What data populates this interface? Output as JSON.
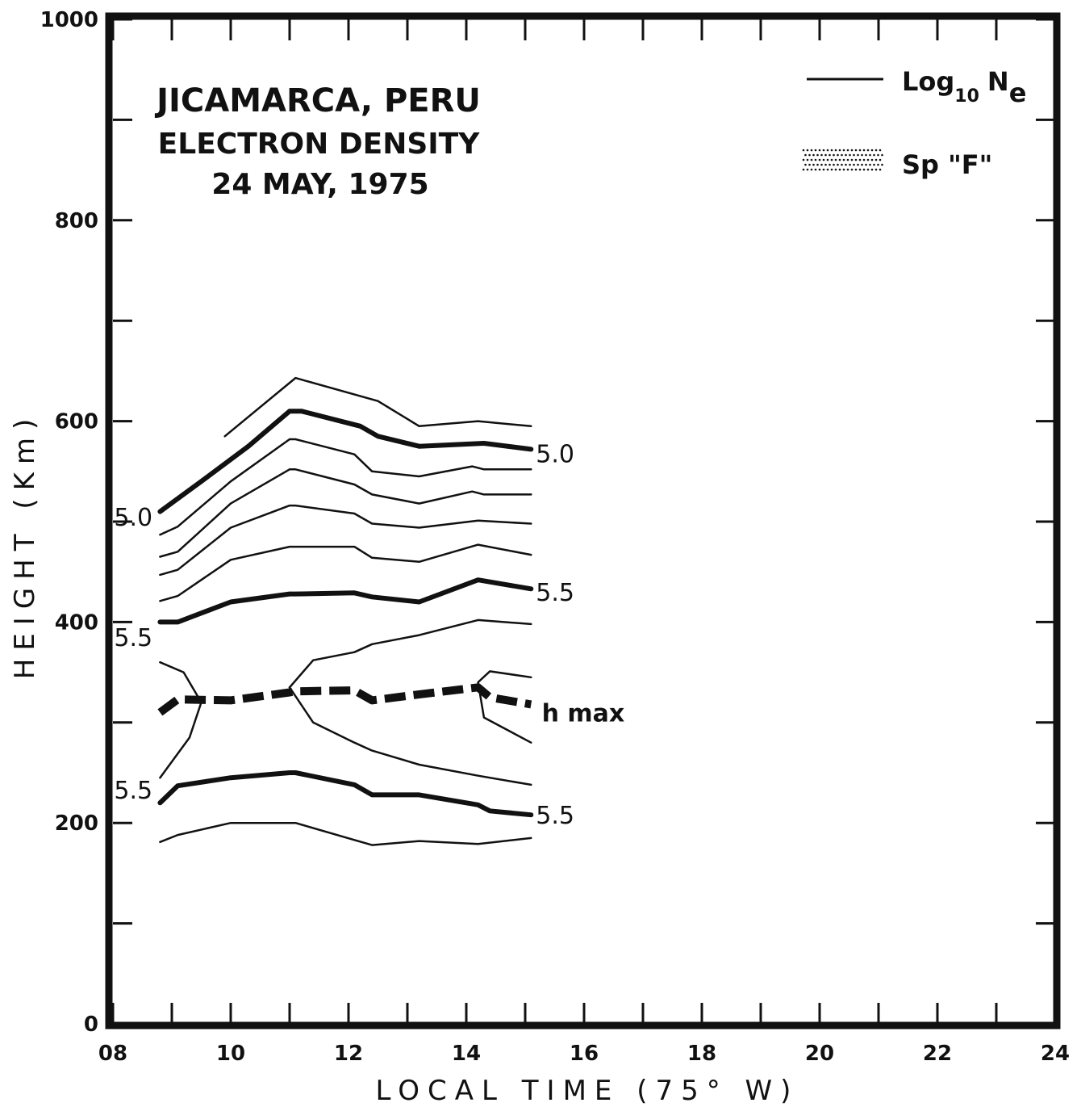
{
  "chart_data": {
    "type": "line",
    "title": "JICAMARCA, PERU",
    "subtitle": "ELECTRON DENSITY",
    "date": "24 MAY, 1975",
    "xlabel": "LOCAL TIME (75° W)",
    "ylabel": "HEIGHT (Km)",
    "xlim": [
      8,
      24
    ],
    "ylim": [
      0,
      1000
    ],
    "x_tick_labels": [
      "08",
      "10",
      "12",
      "14",
      "16",
      "18",
      "20",
      "22",
      "24"
    ],
    "y_tick_labels": [
      "0",
      "200",
      "400",
      "600",
      "800",
      "1000"
    ],
    "legend": {
      "position": "top-right",
      "items": [
        {
          "label": "Log",
          "subscript": "10",
          "label2": "N",
          "subscript2": "e",
          "style": "line"
        },
        {
          "label": "Sp \"F\"",
          "style": "dotted-fill"
        }
      ]
    },
    "series": [
      {
        "style": "thin",
        "points": [
          [
            9.9,
            585
          ],
          [
            11.1,
            643
          ],
          [
            12.5,
            620
          ],
          [
            13.2,
            595
          ],
          [
            14.2,
            600
          ],
          [
            15.1,
            595
          ]
        ]
      },
      {
        "style": "thick",
        "label": "5.0",
        "points": [
          [
            8.8,
            510
          ],
          [
            9.5,
            540
          ],
          [
            10.3,
            575
          ],
          [
            11.0,
            610
          ],
          [
            11.2,
            610
          ],
          [
            12.2,
            595
          ],
          [
            12.5,
            585
          ],
          [
            13.2,
            575
          ],
          [
            14.3,
            578
          ],
          [
            15.1,
            572
          ]
        ]
      },
      {
        "style": "thin",
        "points": [
          [
            8.8,
            487
          ],
          [
            9.1,
            495
          ],
          [
            10.0,
            540
          ],
          [
            11.0,
            582
          ],
          [
            11.1,
            582
          ],
          [
            12.1,
            567
          ],
          [
            12.4,
            550
          ],
          [
            13.2,
            545
          ],
          [
            14.1,
            555
          ],
          [
            14.3,
            552
          ],
          [
            15.1,
            552
          ]
        ]
      },
      {
        "style": "thin",
        "points": [
          [
            8.8,
            465
          ],
          [
            9.1,
            470
          ],
          [
            10.0,
            518
          ],
          [
            11.0,
            552
          ],
          [
            11.1,
            552
          ],
          [
            12.1,
            537
          ],
          [
            12.4,
            527
          ],
          [
            13.2,
            518
          ],
          [
            14.1,
            530
          ],
          [
            14.3,
            527
          ],
          [
            15.1,
            527
          ]
        ]
      },
      {
        "style": "thin",
        "points": [
          [
            8.8,
            447
          ],
          [
            9.1,
            452
          ],
          [
            10.0,
            494
          ],
          [
            11.0,
            516
          ],
          [
            11.1,
            516
          ],
          [
            12.1,
            508
          ],
          [
            12.4,
            498
          ],
          [
            13.2,
            494
          ],
          [
            14.2,
            501
          ],
          [
            15.1,
            498
          ]
        ]
      },
      {
        "style": "thin",
        "points": [
          [
            8.8,
            421
          ],
          [
            9.1,
            426
          ],
          [
            10.0,
            462
          ],
          [
            11.0,
            475
          ],
          [
            11.1,
            475
          ],
          [
            12.1,
            475
          ],
          [
            12.4,
            464
          ],
          [
            13.2,
            460
          ],
          [
            14.2,
            477
          ],
          [
            15.1,
            467
          ]
        ]
      },
      {
        "style": "thick",
        "label": "5.5",
        "points": [
          [
            8.8,
            400
          ],
          [
            9.1,
            400
          ],
          [
            10.0,
            420
          ],
          [
            11.0,
            428
          ],
          [
            11.1,
            428
          ],
          [
            12.1,
            429
          ],
          [
            12.4,
            425
          ],
          [
            13.2,
            420
          ],
          [
            14.2,
            442
          ],
          [
            15.1,
            433
          ]
        ]
      },
      {
        "style": "thin",
        "points": [
          [
            11.0,
            335
          ],
          [
            11.4,
            362
          ],
          [
            12.1,
            370
          ],
          [
            12.4,
            378
          ],
          [
            13.2,
            387
          ],
          [
            14.2,
            402
          ],
          [
            15.1,
            398
          ]
        ]
      },
      {
        "style": "thin",
        "points": [
          [
            8.8,
            360
          ],
          [
            9.2,
            350
          ],
          [
            9.5,
            320
          ],
          [
            9.3,
            285
          ],
          [
            8.8,
            245
          ]
        ]
      },
      {
        "style": "thin",
        "points": [
          [
            11.0,
            335
          ],
          [
            11.4,
            300
          ],
          [
            12.1,
            280
          ],
          [
            12.4,
            272
          ],
          [
            13.2,
            258
          ],
          [
            14.2,
            247
          ],
          [
            15.1,
            238
          ]
        ]
      },
      {
        "style": "thin",
        "points": [
          [
            15.1,
            345
          ],
          [
            14.4,
            351
          ],
          [
            14.2,
            340
          ],
          [
            14.3,
            305
          ],
          [
            15.1,
            280
          ]
        ]
      },
      {
        "style": "dashed",
        "label": "h max",
        "points": [
          [
            8.8,
            310
          ],
          [
            9.1,
            323
          ],
          [
            10.0,
            322
          ],
          [
            11.0,
            330
          ],
          [
            11.1,
            331
          ],
          [
            12.1,
            332
          ],
          [
            12.4,
            322
          ],
          [
            13.2,
            328
          ],
          [
            14.2,
            335
          ],
          [
            14.4,
            325
          ],
          [
            15.1,
            318
          ]
        ]
      },
      {
        "style": "thick",
        "label": "5.5",
        "points": [
          [
            8.8,
            220
          ],
          [
            9.1,
            237
          ],
          [
            10.0,
            245
          ],
          [
            11.0,
            250
          ],
          [
            11.1,
            250
          ],
          [
            12.1,
            238
          ],
          [
            12.4,
            228
          ],
          [
            13.2,
            228
          ],
          [
            14.2,
            218
          ],
          [
            14.4,
            212
          ],
          [
            15.1,
            208
          ]
        ]
      },
      {
        "style": "thin",
        "points": [
          [
            8.8,
            181
          ],
          [
            9.1,
            188
          ],
          [
            10.0,
            200
          ],
          [
            11.0,
            200
          ],
          [
            11.1,
            200
          ],
          [
            12.1,
            183
          ],
          [
            12.4,
            178
          ],
          [
            13.2,
            182
          ],
          [
            14.2,
            179
          ],
          [
            15.1,
            185
          ]
        ]
      }
    ],
    "contour_labels": [
      {
        "text": "5.0",
        "x": 15.1,
        "y": 568,
        "side": "right"
      },
      {
        "text": "5.0",
        "x": 8.7,
        "y": 505,
        "side": "left"
      },
      {
        "text": "5.5",
        "x": 15.1,
        "y": 430,
        "side": "right"
      },
      {
        "text": "5.5",
        "x": 8.7,
        "y": 385,
        "side": "left"
      },
      {
        "text": "h max",
        "x": 15.2,
        "y": 310,
        "side": "right"
      },
      {
        "text": "5.5",
        "x": 8.7,
        "y": 233,
        "side": "left"
      },
      {
        "text": "5.5",
        "x": 15.1,
        "y": 208,
        "side": "right"
      }
    ]
  }
}
